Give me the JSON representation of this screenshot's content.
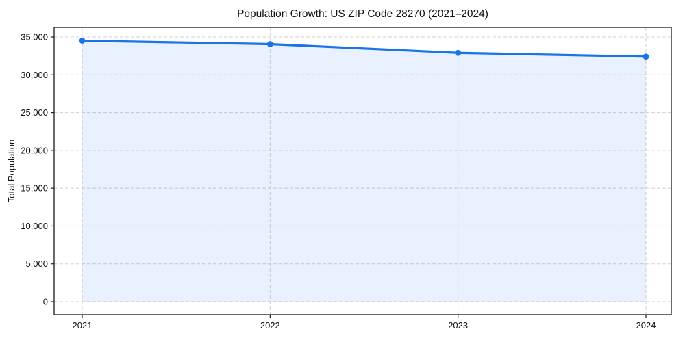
{
  "chart_data": {
    "type": "line",
    "title": "Population Growth: US ZIP Code 28270 (2021–2024)",
    "xlabel": "",
    "ylabel": "Total Population",
    "x": [
      "2021",
      "2022",
      "2023",
      "2024"
    ],
    "series": [
      {
        "name": "Total Population",
        "values": [
          34500,
          34050,
          32900,
          32400
        ]
      }
    ],
    "yticks": [
      0,
      5000,
      10000,
      15000,
      20000,
      25000,
      30000,
      35000
    ],
    "ytick_labels": [
      "0",
      "5,000",
      "10,000",
      "15,000",
      "20,000",
      "25,000",
      "30,000",
      "35,000"
    ],
    "ylim": [
      -1725,
      36225
    ],
    "grid": true,
    "grid_style": "dashed",
    "legend": "none",
    "marker": "circle",
    "area_baseline": 0,
    "colors": {
      "line": "#1a73e8",
      "marker": "#1a73e8",
      "area_fill": "#1a73e8",
      "area_fill_opacity": "0.10",
      "grid": "#d0d0d0",
      "axis": "#1a1a1a",
      "text": "#111111",
      "background": "#ffffff"
    }
  }
}
